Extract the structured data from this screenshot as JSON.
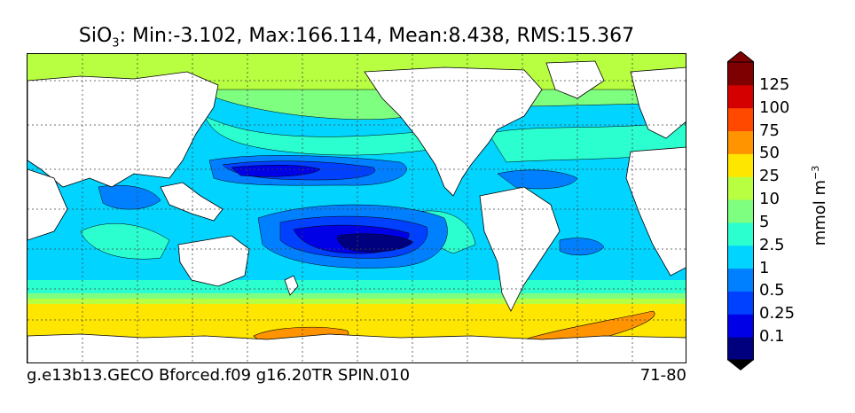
{
  "title": {
    "species": "SiO",
    "subscript": "3",
    "stats": ": Min:-3.102, Max:166.114, Mean:8.438, RMS:15.367"
  },
  "footer": {
    "run": "g.e13b13.GECO Bforced.f09 g16.20TR SPIN.010",
    "years": "71-80"
  },
  "colorbar": {
    "unit_base": "mmol m",
    "unit_exponent": "−3",
    "levels": [
      "0.1",
      "0.25",
      "0.5",
      "1",
      "2.5",
      "5",
      "10",
      "25",
      "50",
      "75",
      "100",
      "125"
    ],
    "colors": [
      "#00007f",
      "#0000e6",
      "#0040ff",
      "#0080ff",
      "#00d4ff",
      "#2bffcf",
      "#7fff7f",
      "#b7ff40",
      "#ffe600",
      "#ff9400",
      "#ff4800",
      "#d40000",
      "#7f0000"
    ]
  },
  "map": {
    "land_color": "#ffffff",
    "ocean_colors": {
      "very_low": "#00007f",
      "low_core": "#0000e6",
      "low": "#0040ff",
      "mid_low": "#0080ff",
      "mid": "#00d4ff",
      "moderate": "#2bffcf",
      "elevated": "#7fff7f",
      "high": "#b7ff40",
      "southern": "#ffe600",
      "peak": "#ff9400"
    }
  }
}
